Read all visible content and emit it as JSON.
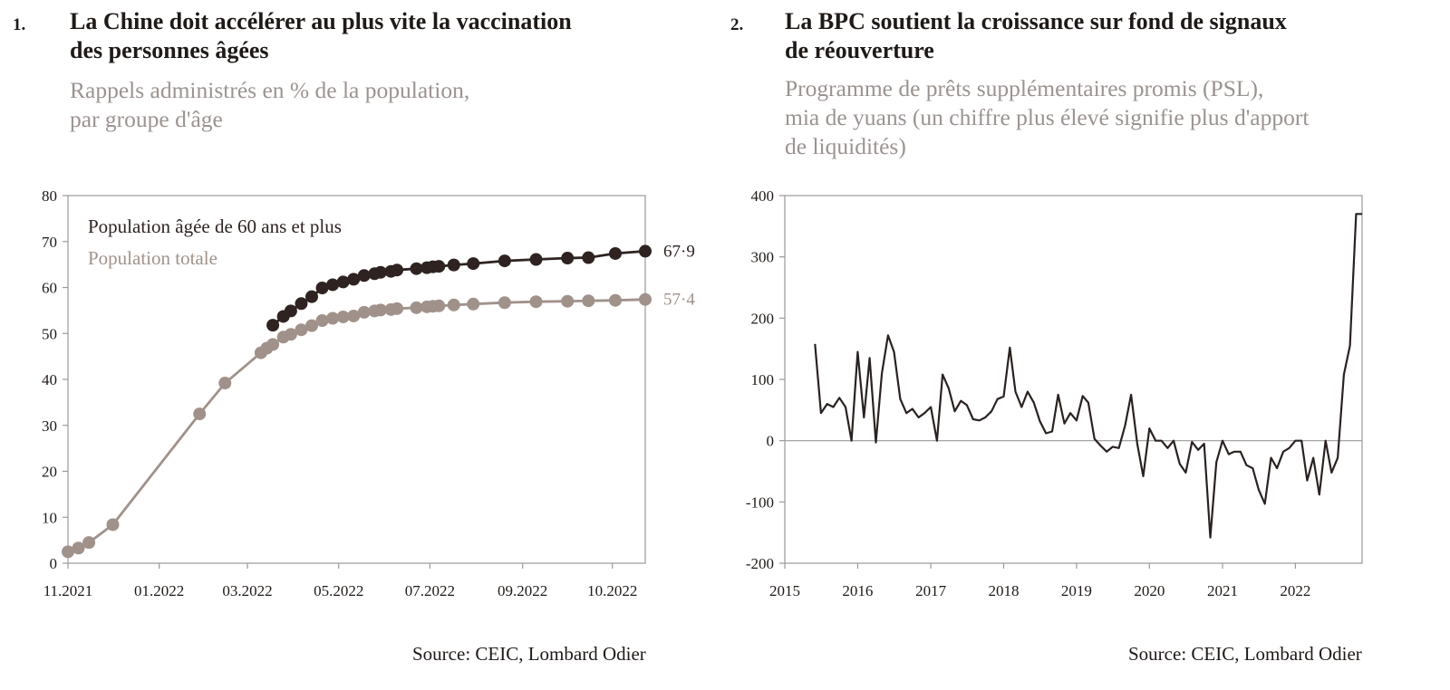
{
  "charts_meta": [
    {
      "number": "1.",
      "title_line1": "La Chine doit accélérer au plus vite la vaccination",
      "title_line2": "des personnes âgées",
      "subtitle_line1": "Rappels administrés en % de la population,",
      "subtitle_line2": "par groupe d'âge",
      "source": "Source: CEIC, Lombard Odier"
    },
    {
      "number": "2.",
      "title_line1": "La BPC soutient la croissance sur fond de signaux",
      "title_line2": "de réouverture",
      "subtitle_line1": "Programme de prêts supplémentaires promis (PSL),",
      "subtitle_line2": "mia de yuans (un chiffre plus élevé signifie plus d'apport",
      "subtitle_line3": "de liquidités)",
      "source": "Source: CEIC, Lombard Odier"
    }
  ],
  "colors": {
    "elderly": "#2e2321",
    "total": "#a0928b",
    "line2": "#2a2220",
    "axis": "#9a9a9a",
    "subtitle": "#9b9390"
  },
  "chart_data": [
    {
      "type": "line",
      "x_axis": "date",
      "xlim": [
        "2021-11-01",
        "2022-11-22"
      ],
      "ylim": [
        0,
        80
      ],
      "yticks": [
        0,
        10,
        20,
        30,
        40,
        50,
        60,
        70,
        80
      ],
      "xtick_labels": [
        "11.2021",
        "01.2022",
        "03.2022",
        "05.2022",
        "07.2022",
        "09.2022",
        "10.2022"
      ],
      "xtick_dates": [
        "2021-11-01",
        "2022-01-01",
        "2022-03-01",
        "2022-05-01",
        "2022-07-01",
        "2022-09-01",
        "2022-10-31"
      ],
      "markers": true,
      "grid": false,
      "legend_position": "top-left",
      "series": [
        {
          "name": "Population âgée de 60 ans et plus",
          "color": "#2e2321",
          "end_label": "67.9",
          "x": [
            "2022-03-18",
            "2022-03-25",
            "2022-03-30",
            "2022-04-06",
            "2022-04-13",
            "2022-04-20",
            "2022-04-27",
            "2022-05-04",
            "2022-05-11",
            "2022-05-18",
            "2022-05-25",
            "2022-05-29",
            "2022-06-05",
            "2022-06-09",
            "2022-06-22",
            "2022-06-29",
            "2022-07-03",
            "2022-07-07",
            "2022-07-17",
            "2022-07-30",
            "2022-08-20",
            "2022-09-10",
            "2022-10-01",
            "2022-10-15",
            "2022-11-02",
            "2022-11-22"
          ],
          "values": [
            51.8,
            53.7,
            54.9,
            56.5,
            58.0,
            59.9,
            60.6,
            61.2,
            61.8,
            62.6,
            63.0,
            63.3,
            63.5,
            63.8,
            64.1,
            64.3,
            64.5,
            64.6,
            64.9,
            65.2,
            65.8,
            66.1,
            66.4,
            66.5,
            67.4,
            67.9
          ]
        },
        {
          "name": "Population totale",
          "color": "#a0928b",
          "end_label": "57.4",
          "x": [
            "2021-11-01",
            "2021-11-08",
            "2021-11-15",
            "2021-12-01",
            "2022-01-28",
            "2022-02-14",
            "2022-03-10",
            "2022-03-14",
            "2022-03-18",
            "2022-03-25",
            "2022-03-30",
            "2022-04-06",
            "2022-04-13",
            "2022-04-20",
            "2022-04-27",
            "2022-05-04",
            "2022-05-11",
            "2022-05-18",
            "2022-05-25",
            "2022-05-29",
            "2022-06-05",
            "2022-06-09",
            "2022-06-22",
            "2022-06-29",
            "2022-07-03",
            "2022-07-07",
            "2022-07-17",
            "2022-07-30",
            "2022-08-20",
            "2022-09-10",
            "2022-10-01",
            "2022-10-15",
            "2022-11-02",
            "2022-11-22"
          ],
          "values": [
            2.5,
            3.3,
            4.5,
            8.4,
            32.5,
            39.2,
            45.8,
            46.8,
            47.6,
            49.2,
            49.8,
            50.8,
            51.7,
            52.8,
            53.3,
            53.6,
            53.8,
            54.6,
            54.9,
            55.1,
            55.2,
            55.4,
            55.6,
            55.8,
            55.9,
            56.0,
            56.2,
            56.4,
            56.7,
            56.9,
            57.0,
            57.1,
            57.2,
            57.4
          ]
        }
      ]
    },
    {
      "type": "line",
      "x_axis": "date",
      "xlim": [
        "2015-01-01",
        "2022-12-01"
      ],
      "ylim": [
        -200,
        400
      ],
      "yticks": [
        -200,
        -100,
        0,
        100,
        200,
        300,
        400
      ],
      "xtick_labels": [
        "2015",
        "2016",
        "2017",
        "2018",
        "2019",
        "2020",
        "2021",
        "2022"
      ],
      "xtick_dates": [
        "2015-01-01",
        "2016-01-01",
        "2017-01-01",
        "2018-01-01",
        "2019-01-01",
        "2020-01-01",
        "2021-01-01",
        "2022-01-01"
      ],
      "markers": false,
      "grid": false,
      "zero_line": true,
      "series": [
        {
          "color": "#2a2220",
          "x": [
            "2015-06-01",
            "2015-07-01",
            "2015-08-01",
            "2015-09-01",
            "2015-10-01",
            "2015-11-01",
            "2015-12-01",
            "2016-01-01",
            "2016-02-01",
            "2016-03-01",
            "2016-04-01",
            "2016-05-01",
            "2016-06-01",
            "2016-07-01",
            "2016-08-01",
            "2016-09-01",
            "2016-10-01",
            "2016-11-01",
            "2016-12-01",
            "2017-01-01",
            "2017-02-01",
            "2017-03-01",
            "2017-04-01",
            "2017-05-01",
            "2017-06-01",
            "2017-07-01",
            "2017-08-01",
            "2017-09-01",
            "2017-10-01",
            "2017-11-01",
            "2017-12-01",
            "2018-01-01",
            "2018-02-01",
            "2018-03-01",
            "2018-04-01",
            "2018-05-01",
            "2018-06-01",
            "2018-07-01",
            "2018-08-01",
            "2018-09-01",
            "2018-10-01",
            "2018-11-01",
            "2018-12-01",
            "2019-01-01",
            "2019-02-01",
            "2019-03-01",
            "2019-04-01",
            "2019-05-01",
            "2019-06-01",
            "2019-07-01",
            "2019-08-01",
            "2019-09-01",
            "2019-10-01",
            "2019-11-01",
            "2019-12-01",
            "2020-01-01",
            "2020-02-01",
            "2020-03-01",
            "2020-04-01",
            "2020-05-01",
            "2020-06-01",
            "2020-07-01",
            "2020-08-01",
            "2020-09-01",
            "2020-10-01",
            "2020-11-01",
            "2020-12-01",
            "2021-01-01",
            "2021-02-01",
            "2021-03-01",
            "2021-04-01",
            "2021-05-01",
            "2021-06-01",
            "2021-07-01",
            "2021-08-01",
            "2021-09-01",
            "2021-10-01",
            "2021-11-01",
            "2021-12-01",
            "2022-01-01",
            "2022-02-01",
            "2022-03-01",
            "2022-04-01",
            "2022-05-01",
            "2022-06-01",
            "2022-07-01",
            "2022-08-01",
            "2022-09-01",
            "2022-10-01",
            "2022-11-01",
            "2022-12-01"
          ],
          "values": [
            158,
            45,
            60,
            55,
            70,
            55,
            0,
            145,
            38,
            135,
            -3,
            110,
            172,
            145,
            68,
            45,
            52,
            38,
            45,
            55,
            0,
            108,
            85,
            48,
            65,
            58,
            35,
            33,
            38,
            48,
            68,
            72,
            152,
            80,
            55,
            80,
            62,
            32,
            12,
            15,
            75,
            28,
            45,
            33,
            73,
            62,
            3,
            -8,
            -18,
            -10,
            -12,
            25,
            75,
            -5,
            -58,
            20,
            0,
            0,
            -12,
            0,
            -38,
            -52,
            -2,
            -15,
            -5,
            -158,
            -35,
            0,
            -22,
            -18,
            -18,
            -40,
            -45,
            -80,
            -103,
            -28,
            -45,
            -18,
            -12,
            0,
            0,
            -65,
            -28,
            -88,
            0,
            -52,
            -28,
            108,
            155,
            370,
            370
          ]
        }
      ]
    }
  ]
}
